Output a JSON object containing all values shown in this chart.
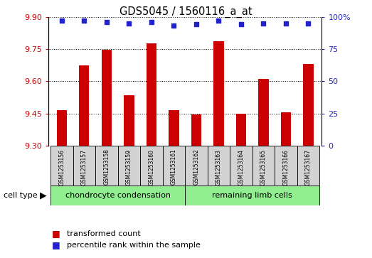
{
  "title": "GDS5045 / 1560116_a_at",
  "samples": [
    "GSM1253156",
    "GSM1253157",
    "GSM1253158",
    "GSM1253159",
    "GSM1253160",
    "GSM1253161",
    "GSM1253162",
    "GSM1253163",
    "GSM1253164",
    "GSM1253165",
    "GSM1253166",
    "GSM1253167"
  ],
  "bar_values": [
    9.465,
    9.675,
    9.745,
    9.535,
    9.775,
    9.465,
    9.445,
    9.785,
    9.45,
    9.61,
    9.455,
    9.68
  ],
  "percentile_values": [
    97,
    97,
    96,
    95,
    96,
    93,
    94,
    97,
    94,
    95,
    95,
    95
  ],
  "bar_color": "#cc0000",
  "dot_color": "#2222cc",
  "ylim_left": [
    9.3,
    9.9
  ],
  "ylim_right": [
    0,
    100
  ],
  "yticks_left": [
    9.3,
    9.45,
    9.6,
    9.75,
    9.9
  ],
  "yticks_right": [
    0,
    25,
    50,
    75,
    100
  ],
  "ytick_labels_right": [
    "0",
    "25",
    "50",
    "75",
    "100%"
  ],
  "group1_label": "chondrocyte condensation",
  "group2_label": "remaining limb cells",
  "group1_count": 6,
  "group2_count": 6,
  "cell_type_label": "cell type",
  "legend_bar_label": "transformed count",
  "legend_dot_label": "percentile rank within the sample",
  "left_tick_color": "#cc0000",
  "right_tick_color": "#2222cc",
  "group_bg": "#90ee90",
  "sample_bg": "#d3d3d3",
  "fig_width": 5.23,
  "fig_height": 3.63
}
